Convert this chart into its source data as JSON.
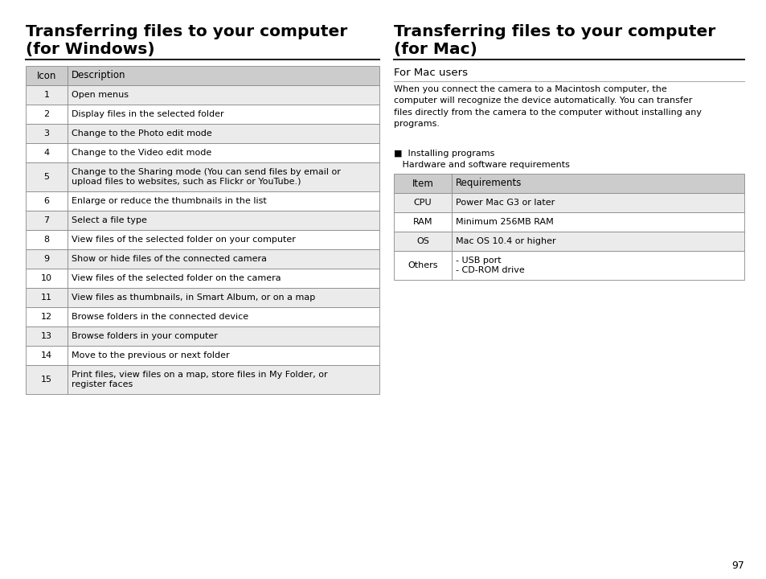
{
  "bg_color": "#ffffff",
  "left_title_line1": "Transferring files to your computer",
  "left_title_line2": "(for Windows)",
  "right_title_line1": "Transferring files to your computer",
  "right_title_line2": "(for Mac)",
  "left_table_headers": [
    "Icon",
    "Description"
  ],
  "left_table_rows": [
    [
      "1",
      "Open menus"
    ],
    [
      "2",
      "Display files in the selected folder"
    ],
    [
      "3",
      "Change to the Photo edit mode"
    ],
    [
      "4",
      "Change to the Video edit mode"
    ],
    [
      "5",
      "Change to the Sharing mode (You can send files by email or\nupload files to websites, such as Flickr or YouTube.)"
    ],
    [
      "6",
      "Enlarge or reduce the thumbnails in the list"
    ],
    [
      "7",
      "Select a file type"
    ],
    [
      "8",
      "View files of the selected folder on your computer"
    ],
    [
      "9",
      "Show or hide files of the connected camera"
    ],
    [
      "10",
      "View files of the selected folder on the camera"
    ],
    [
      "11",
      "View files as thumbnails, in Smart Album, or on a map"
    ],
    [
      "12",
      "Browse folders in the connected device"
    ],
    [
      "13",
      "Browse folders in your computer"
    ],
    [
      "14",
      "Move to the previous or next folder"
    ],
    [
      "15",
      "Print files, view files on a map, store files in My Folder, or\nregister faces"
    ]
  ],
  "right_subsection_title": "For Mac users",
  "right_paragraph": "When you connect the camera to a Macintosh computer, the\ncomputer will recognize the device automatically. You can transfer\nfiles directly from the camera to the computer without installing any\nprograms.",
  "right_bullet_line1": "■  Installing programs",
  "right_bullet_line2": "   Hardware and software requirements",
  "right_table_headers": [
    "Item",
    "Requirements"
  ],
  "right_table_rows": [
    [
      "CPU",
      "Power Mac G3 or later"
    ],
    [
      "RAM",
      "Minimum 256MB RAM"
    ],
    [
      "OS",
      "Mac OS 10.4 or higher"
    ],
    [
      "Others",
      "- USB port\n- CD-ROM drive"
    ]
  ],
  "header_bg": "#cccccc",
  "alt_row_bg": "#ebebeb",
  "white_row_bg": "#ffffff",
  "table_border": "#888888",
  "page_number": "97",
  "title_fontsize": 14.5,
  "body_fontsize": 8.0,
  "header_fontsize": 8.5,
  "subsection_fontsize": 9.5
}
